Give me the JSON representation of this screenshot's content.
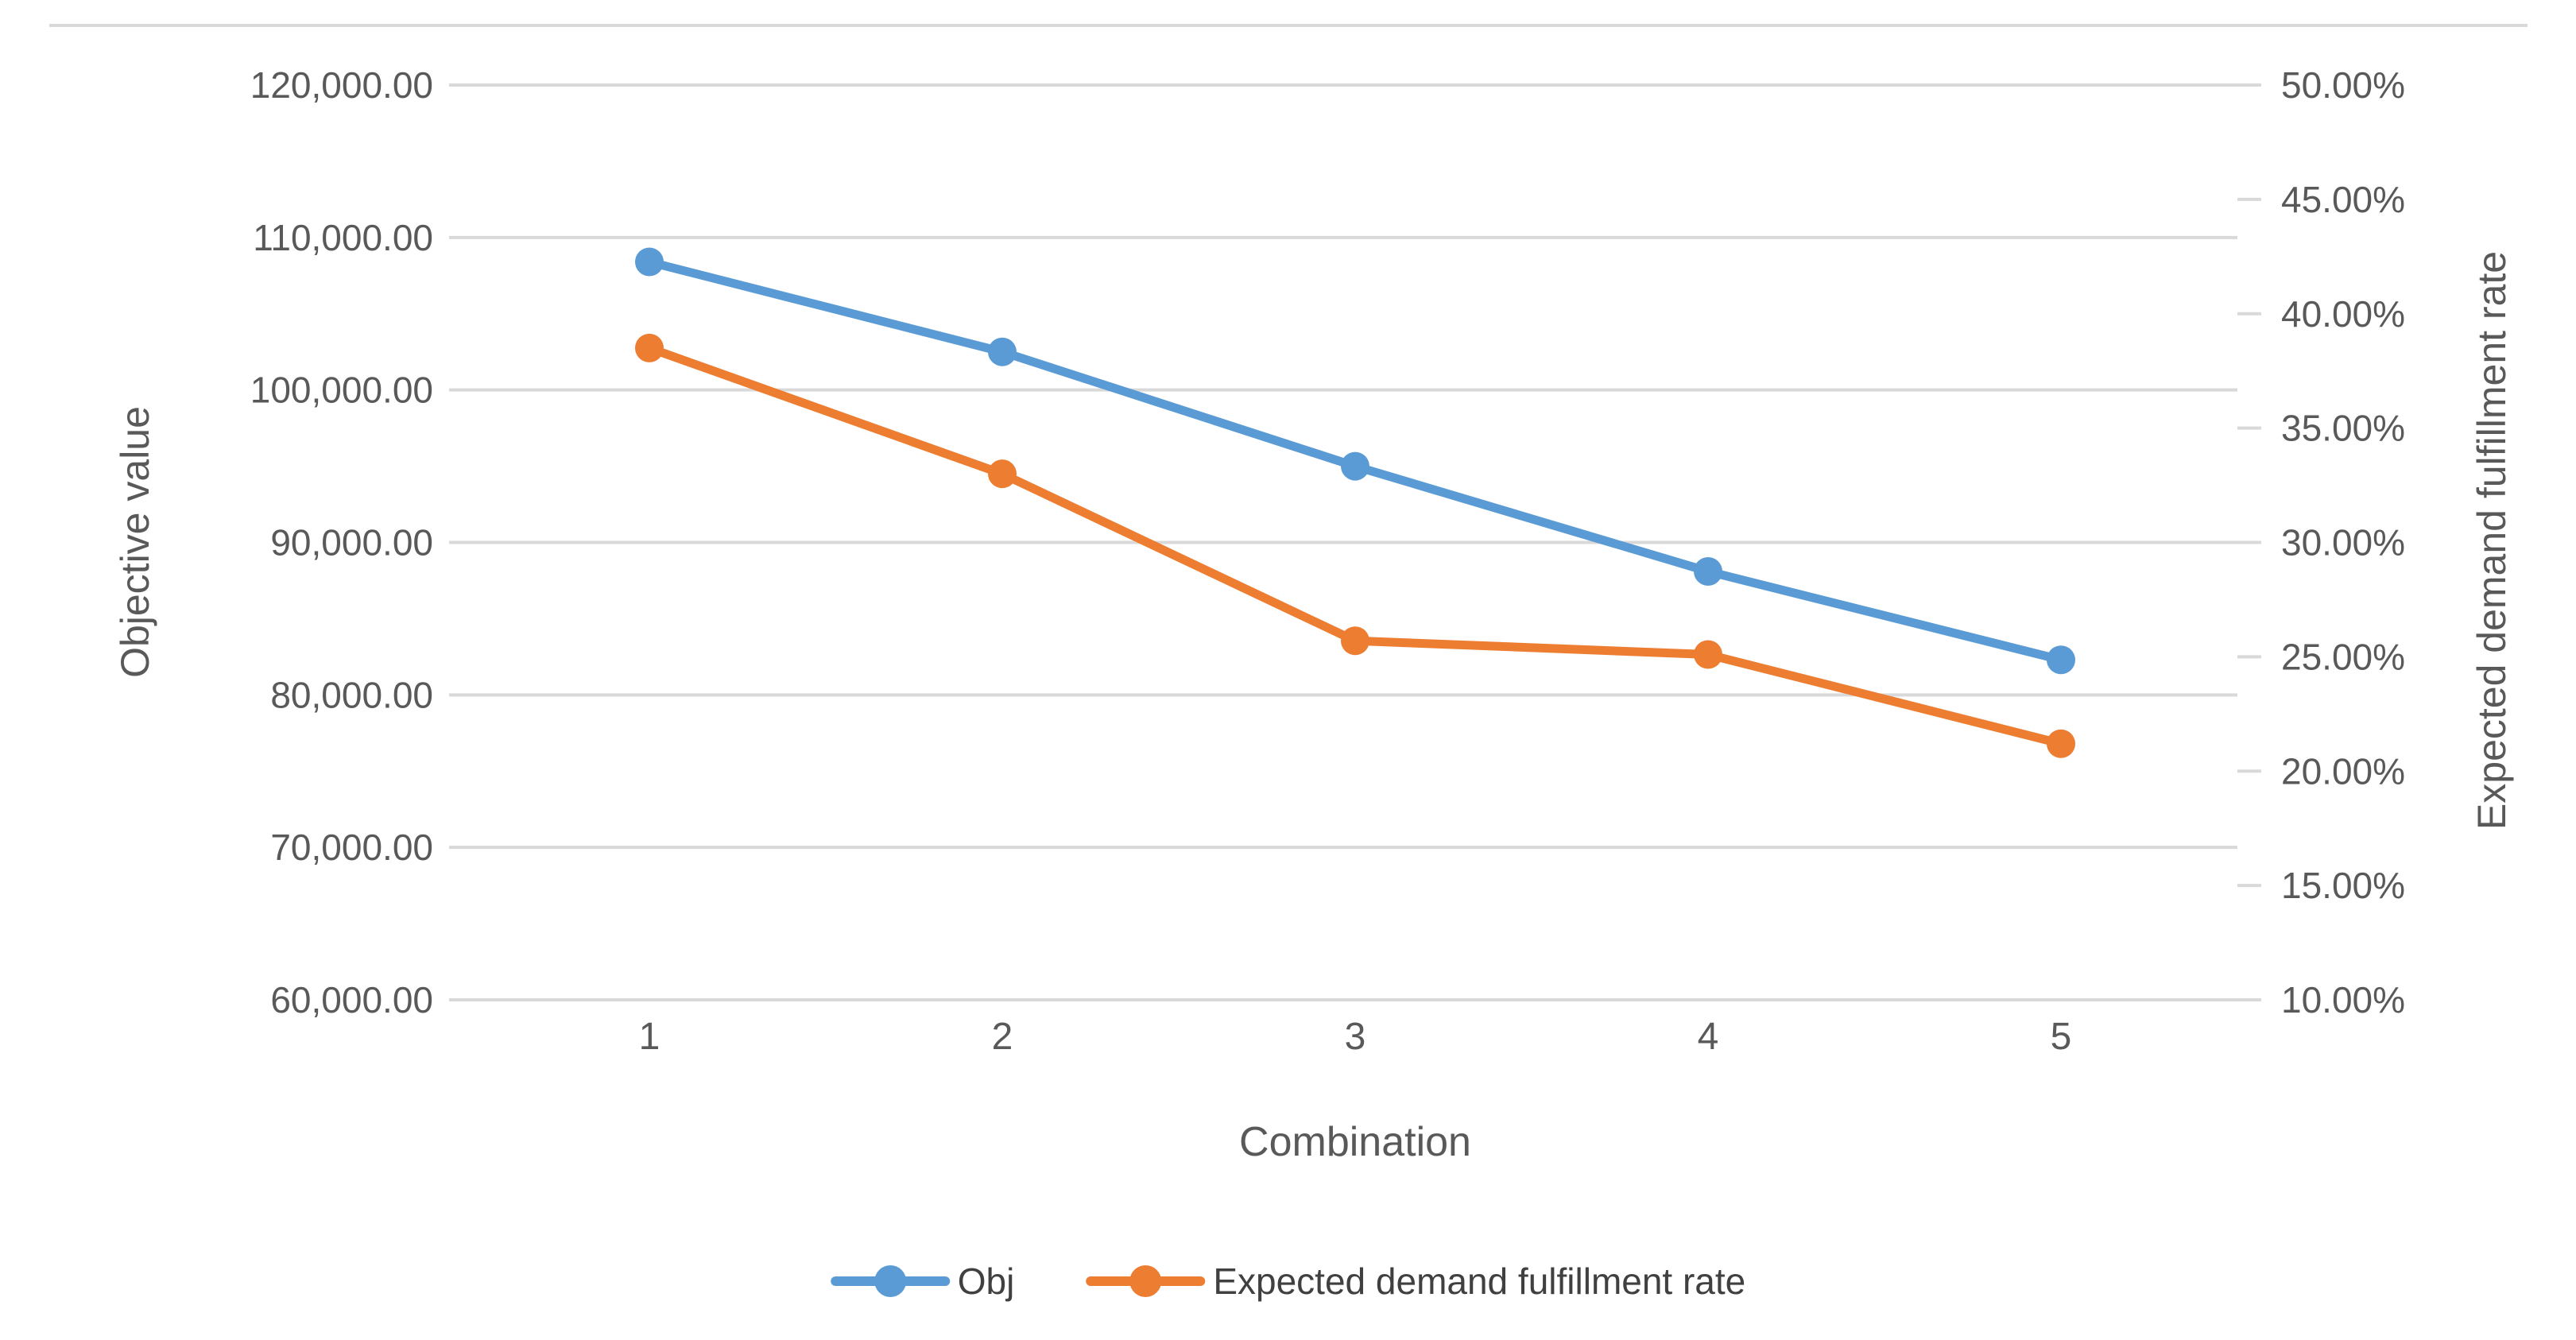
{
  "chart_data": {
    "type": "line",
    "title": "",
    "categories": [
      "1",
      "2",
      "3",
      "4",
      "5"
    ],
    "series": [
      {
        "name": "Obj",
        "axis": "left",
        "color": "#5B9BD5",
        "values": [
          108400,
          102500,
          95000,
          88100,
          82300
        ]
      },
      {
        "name": "Expected demand fulfillment rate",
        "axis": "right",
        "color": "#ED7D31",
        "values": [
          38.5,
          33.0,
          25.7,
          25.1,
          21.2
        ],
        "unit": "%"
      }
    ],
    "x_axis": {
      "title": "Combination",
      "tick_labels": [
        "1",
        "2",
        "3",
        "4",
        "5"
      ]
    },
    "left_axis": {
      "title": "Objective value",
      "min": 60000,
      "max": 120000,
      "step": 10000,
      "tick_labels": [
        "120,000.00",
        "110,000.00",
        "100,000.00",
        "90,000.00",
        "80,000.00",
        "70,000.00",
        "60,000.00"
      ]
    },
    "right_axis": {
      "title": "Expected demand fulfillment rate",
      "min": 10,
      "max": 50,
      "step": 5,
      "tick_labels": [
        "50.00%",
        "45.00%",
        "40.00%",
        "35.00%",
        "30.00%",
        "25.00%",
        "20.00%",
        "15.00%",
        "10.00%"
      ]
    },
    "legend": {
      "position": "bottom",
      "items": [
        "Obj",
        "Expected demand fulfillment rate"
      ]
    },
    "grid": "horizontal",
    "colors": {
      "gridline": "#D9D9D9",
      "tick_text": "#595959",
      "axis_title_text": "#595959",
      "legend_text": "#404040",
      "series_obj": "#5B9BD5",
      "series_rate": "#ED7D31"
    }
  }
}
